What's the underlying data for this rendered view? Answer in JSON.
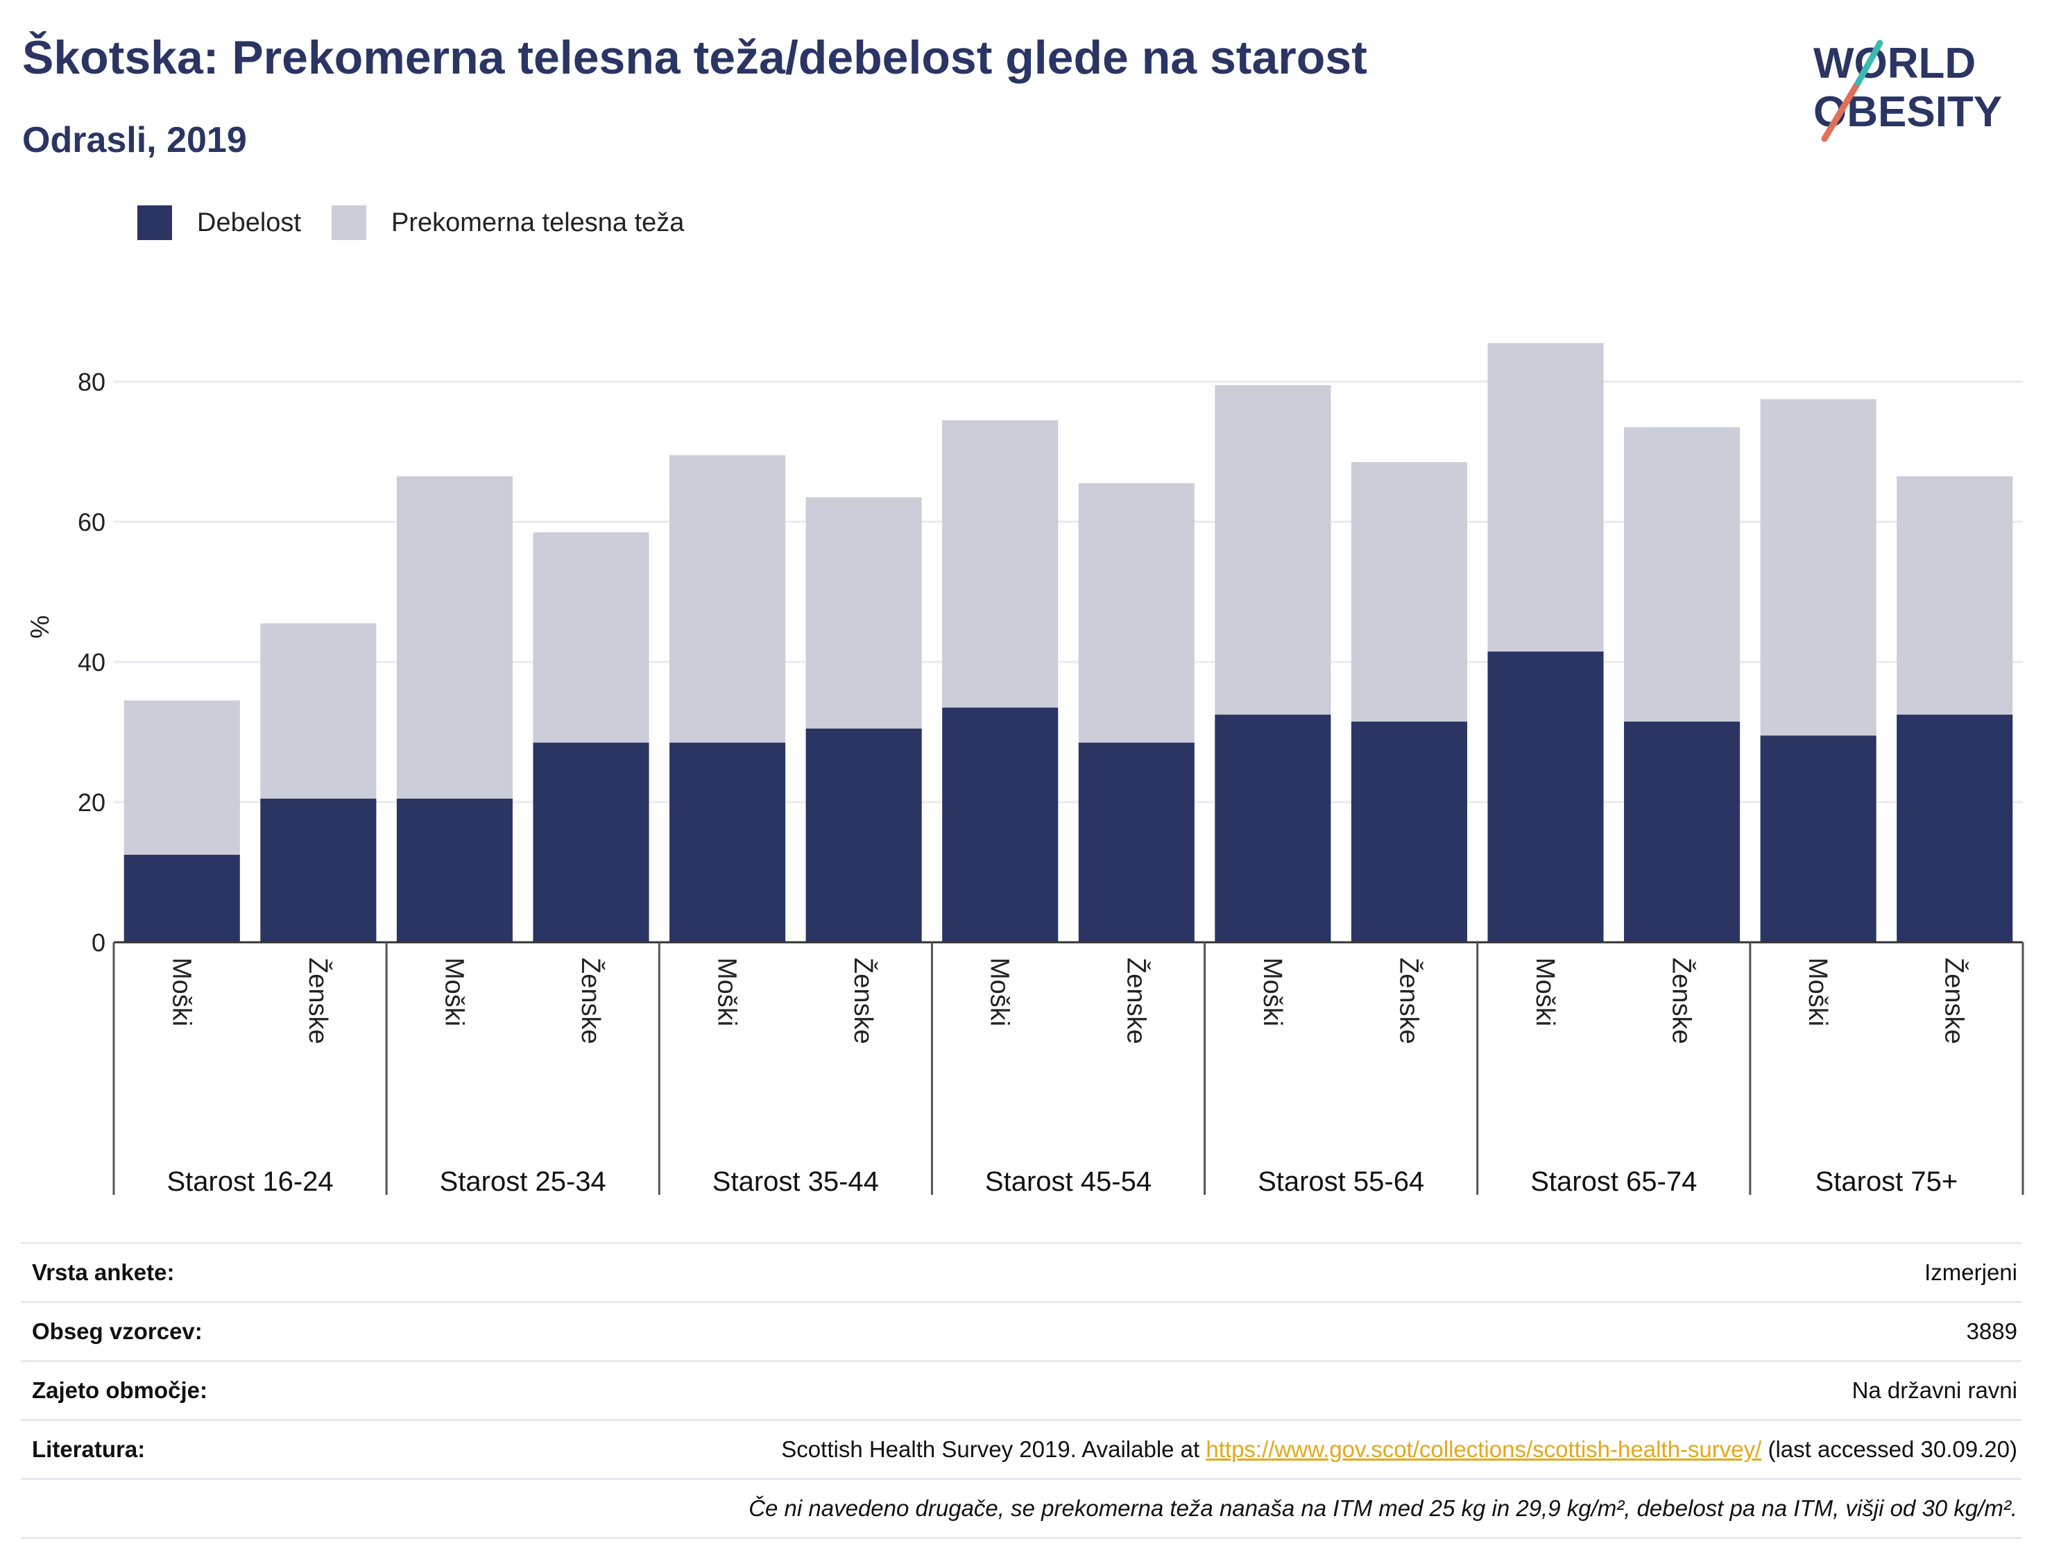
{
  "header": {
    "title": "Škotska: Prekomerna telesna teža/debelost glede na starost",
    "subtitle": "Odrasli, 2019"
  },
  "logo": {
    "line1": "WORLD",
    "line2": "OBESITY"
  },
  "colors": {
    "obesity": "#2a3563",
    "overweight": "#cbcdd8",
    "title": "#2a3564",
    "link": "#e3a81b"
  },
  "legend": [
    {
      "label": "Debelost",
      "color": "#2a3563"
    },
    {
      "label": "Prekomerna telesna teža",
      "color": "#cbcdd8"
    }
  ],
  "chart_data": {
    "type": "bar",
    "stacked": true,
    "ylabel": "%",
    "ylim": [
      0,
      90
    ],
    "yticks": [
      0,
      20,
      40,
      60,
      80
    ],
    "grid": true,
    "legend_position": "top-left",
    "groups": [
      "Starost 16-24",
      "Starost 25-34",
      "Starost 35-44",
      "Starost 45-54",
      "Starost 55-64",
      "Starost 65-74",
      "Starost 75+"
    ],
    "categories": [
      "Moški",
      "Ženske",
      "Moški",
      "Ženske",
      "Moški",
      "Ženske",
      "Moški",
      "Ženske",
      "Moški",
      "Ženske",
      "Moški",
      "Ženske",
      "Moški",
      "Ženske"
    ],
    "series": [
      {
        "name": "Debelost",
        "values": [
          12.5,
          20.5,
          20.5,
          28.5,
          28.5,
          30.5,
          33.5,
          28.5,
          32.5,
          31.5,
          41.5,
          31.5,
          29.5,
          32.5
        ]
      },
      {
        "name": "Prekomerna telesna teža",
        "values": [
          22,
          25,
          46,
          30,
          41,
          33,
          41,
          37,
          47,
          37,
          44,
          42,
          48,
          34
        ]
      }
    ]
  },
  "info": {
    "rows": [
      {
        "label": "Vrsta ankete:",
        "value": "Izmerjeni"
      },
      {
        "label": "Obseg vzorcev:",
        "value": "3889"
      },
      {
        "label": "Zajeto območje:",
        "value": "Na državni ravni"
      }
    ],
    "literature": {
      "label": "Literatura:",
      "prefix": "Scottish Health Survey 2019. Available at ",
      "link": "https://www.gov.scot/collections/scottish-health-survey/",
      "suffix": " (last accessed 30.09.20)"
    },
    "note": "Če ni navedeno drugače, se prekomerna teža nanaša na ITM med 25 kg in 29,9 kg/m², debelost pa na ITM, višji od 30 kg/m²."
  }
}
